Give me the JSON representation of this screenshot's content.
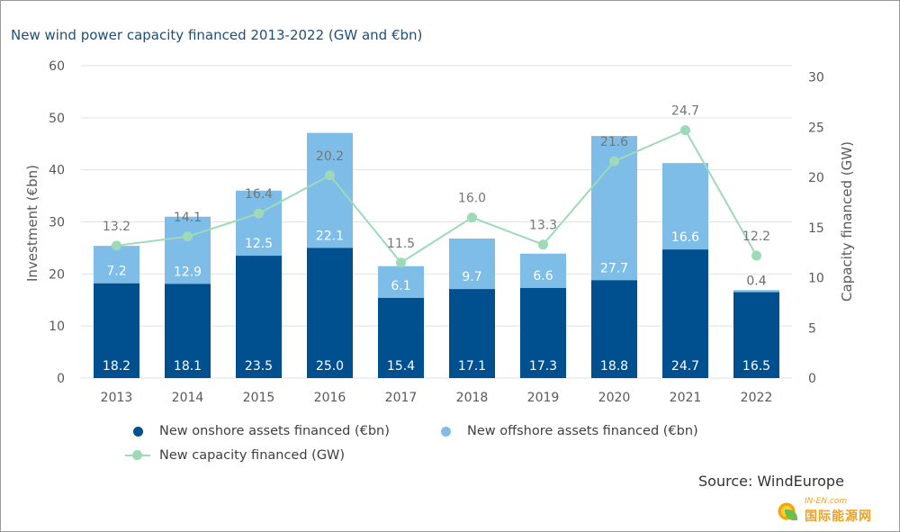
{
  "title": "New wind power capacity financed 2013-2022 (GW and €bn)",
  "source": "Source: WindEurope",
  "watermark": {
    "small_text": "IN-EN.com",
    "main_text": "国际能源网"
  },
  "colors": {
    "onshore": "#00508f",
    "offshore": "#7ebde8",
    "capacity": "#9ed9b8",
    "grid": "#e2e2e2",
    "axis_text": "#595959",
    "label_dark": "#6b6b6b"
  },
  "chart_data": {
    "type": "bar",
    "stacked": true,
    "categories": [
      "2013",
      "2014",
      "2015",
      "2016",
      "2017",
      "2018",
      "2019",
      "2020",
      "2021",
      "2022"
    ],
    "series": [
      {
        "name": "New onshore assets financed (€bn)",
        "axis": "left",
        "kind": "bar",
        "values": [
          18.2,
          18.1,
          23.5,
          25.0,
          15.4,
          17.1,
          17.3,
          18.8,
          24.7,
          16.5
        ]
      },
      {
        "name": "New offshore assets financed (€bn)",
        "axis": "left",
        "kind": "bar",
        "values": [
          7.2,
          12.9,
          12.5,
          22.1,
          6.1,
          9.7,
          6.6,
          27.7,
          16.6,
          0.4
        ]
      },
      {
        "name": "New capacity financed (GW)",
        "axis": "right",
        "kind": "line",
        "values": [
          13.2,
          14.1,
          16.4,
          20.2,
          11.5,
          16.0,
          13.3,
          21.6,
          24.7,
          12.2
        ]
      }
    ],
    "data_labels": {
      "onshore": [
        "18.2",
        "18.1",
        "23.5",
        "25.0",
        "15.4",
        "17.1",
        "17.3",
        "18.8",
        "24.7",
        "16.5"
      ],
      "offshore": [
        "7.2",
        "12.9",
        "12.5",
        "22.1",
        "6.1",
        "9.7",
        "6.6",
        "27.7",
        "16.6",
        "0.4"
      ],
      "capacity": [
        "13.2",
        "14.1",
        "16.4",
        "20.2",
        "11.5",
        "16.0",
        "13.3",
        "21.6",
        "24.7",
        "12.2"
      ]
    },
    "y_left": {
      "label": "Investment (€bn)",
      "range": [
        0,
        60
      ],
      "ticks": [
        "0",
        "10",
        "20",
        "30",
        "40",
        "50",
        "60"
      ]
    },
    "y_right": {
      "label": "Capacity financed (GW)",
      "range": [
        0,
        30
      ],
      "ticks": [
        "0",
        "5",
        "10",
        "15",
        "20",
        "25",
        "30"
      ]
    },
    "grid": true,
    "legend_position": "bottom-left"
  }
}
